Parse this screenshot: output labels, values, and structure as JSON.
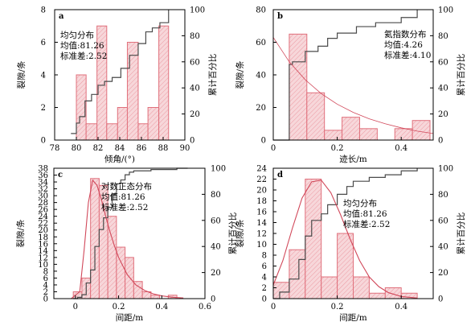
{
  "chart_data": [
    {
      "panel": "a",
      "type": "bar",
      "xlabel": "倾角/(°)",
      "ylabel": "裂隙/条",
      "y2label": "累计百分比",
      "xlim": [
        78,
        90
      ],
      "xticks": [
        78,
        80,
        82,
        84,
        86,
        88,
        90
      ],
      "ylim": [
        0,
        8
      ],
      "yticks": [
        0,
        2,
        4,
        6,
        8
      ],
      "y2lim": [
        0,
        100
      ],
      "y2ticks": [
        0,
        20,
        40,
        60,
        80,
        100
      ],
      "annotation": [
        "均匀分布",
        "均值:81.26",
        "标准差:2.52"
      ],
      "bins": [
        {
          "x0": 80.0,
          "x1": 80.9,
          "count": 4
        },
        {
          "x0": 80.9,
          "x1": 81.9,
          "count": 1
        },
        {
          "x0": 81.9,
          "x1": 82.8,
          "count": 7
        },
        {
          "x0": 82.8,
          "x1": 83.8,
          "count": 1
        },
        {
          "x0": 83.8,
          "x1": 84.7,
          "count": 2
        },
        {
          "x0": 84.7,
          "x1": 85.7,
          "count": 6
        },
        {
          "x0": 85.7,
          "x1": 86.6,
          "count": 1
        },
        {
          "x0": 86.6,
          "x1": 87.6,
          "count": 2
        },
        {
          "x0": 87.6,
          "x1": 88.5,
          "count": 7
        }
      ],
      "cumulative": {
        "x": [
          79.5,
          80.0,
          80.3,
          80.8,
          81.4,
          82.0,
          82.6,
          83.3,
          84.1,
          84.9,
          85.7,
          86.4,
          87.0,
          87.7,
          88.5
        ],
        "y": [
          5,
          13,
          18,
          30,
          35,
          42,
          45,
          48,
          55,
          65,
          74,
          83,
          86,
          90,
          100
        ]
      },
      "fit": null
    },
    {
      "panel": "b",
      "type": "bar",
      "xlabel": "迹长/m",
      "ylabel": "裂隙/条",
      "y2label": "累计百分比",
      "xlim": [
        0,
        0.5
      ],
      "xticks": [
        0,
        0.2,
        0.4
      ],
      "ylim": [
        0,
        80
      ],
      "yticks": [
        0,
        20,
        40,
        60,
        80
      ],
      "y2lim": [
        0,
        100
      ],
      "y2ticks": [
        0,
        20,
        40,
        60,
        80,
        100
      ],
      "annotation": [
        "氦指数分布",
        "均值:4.26",
        "标准差:4.10"
      ],
      "bins": [
        {
          "x0": 0.05,
          "x1": 0.105,
          "count": 65
        },
        {
          "x0": 0.105,
          "x1": 0.16,
          "count": 29
        },
        {
          "x0": 0.16,
          "x1": 0.215,
          "count": 6
        },
        {
          "x0": 0.215,
          "x1": 0.27,
          "count": 14
        },
        {
          "x0": 0.27,
          "x1": 0.325,
          "count": 7
        },
        {
          "x0": 0.38,
          "x1": 0.435,
          "count": 7
        },
        {
          "x0": 0.435,
          "x1": 0.49,
          "count": 12
        }
      ],
      "cumulative": {
        "x": [
          0.0,
          0.05,
          0.06,
          0.1,
          0.14,
          0.17,
          0.2,
          0.26,
          0.32,
          0.4,
          0.45
        ],
        "y": [
          0,
          58,
          60,
          68,
          72,
          78,
          82,
          87,
          90,
          94,
          100
        ]
      },
      "fit": {
        "kind": "exponential",
        "x": [
          0.0,
          0.05,
          0.1,
          0.15,
          0.2,
          0.25,
          0.3,
          0.35,
          0.4,
          0.45,
          0.5
        ],
        "y": [
          63,
          48,
          37,
          28.5,
          22,
          17,
          13,
          10,
          7.5,
          5.5,
          4
        ]
      }
    },
    {
      "panel": "c",
      "type": "bar",
      "xlabel": "间距/m",
      "ylabel": "裂隙/条",
      "y2label": "累计百分比",
      "xlim": [
        -0.1,
        0.6
      ],
      "xticks": [
        0,
        0.2,
        0.4,
        0.6
      ],
      "ylim": [
        0,
        38
      ],
      "yticks": [
        0,
        2,
        4,
        6,
        8,
        10,
        12,
        14,
        16,
        18,
        20,
        22,
        24,
        26,
        28,
        30,
        32,
        34,
        36,
        38
      ],
      "y2lim": [
        0,
        100
      ],
      "y2ticks": [
        0,
        20,
        40,
        60,
        80,
        100
      ],
      "annotation": [
        "对数正态分布",
        "均值:81.26",
        "标准差:2.52"
      ],
      "bins": [
        {
          "x0": -0.01,
          "x1": 0.03,
          "count": 2
        },
        {
          "x0": 0.03,
          "x1": 0.07,
          "count": 6
        },
        {
          "x0": 0.07,
          "x1": 0.11,
          "count": 35
        },
        {
          "x0": 0.11,
          "x1": 0.15,
          "count": 33
        },
        {
          "x0": 0.15,
          "x1": 0.19,
          "count": 24
        },
        {
          "x0": 0.19,
          "x1": 0.23,
          "count": 15
        },
        {
          "x0": 0.23,
          "x1": 0.27,
          "count": 12
        },
        {
          "x0": 0.27,
          "x1": 0.31,
          "count": 5
        },
        {
          "x0": 0.31,
          "x1": 0.35,
          "count": 2
        },
        {
          "x0": 0.35,
          "x1": 0.39,
          "count": 1
        },
        {
          "x0": 0.43,
          "x1": 0.47,
          "count": 1
        }
      ],
      "cumulative": {
        "x": [
          -0.01,
          0.01,
          0.03,
          0.05,
          0.07,
          0.09,
          0.11,
          0.13,
          0.15,
          0.17,
          0.19,
          0.21,
          0.23,
          0.25,
          0.27,
          0.31,
          0.35,
          0.39,
          0.43,
          0.47,
          0.52
        ],
        "y": [
          0,
          1,
          3,
          12,
          22,
          40,
          53,
          62,
          70,
          80,
          88,
          91,
          95,
          97,
          98,
          98,
          99,
          99,
          99,
          100,
          100
        ]
      },
      "fit": {
        "kind": "lognormal",
        "x": [
          -0.02,
          0.02,
          0.04,
          0.06,
          0.08,
          0.1,
          0.12,
          0.14,
          0.16,
          0.18,
          0.2,
          0.24,
          0.28,
          0.32,
          0.36,
          0.4,
          0.45,
          0.5
        ],
        "y": [
          0,
          2,
          14,
          28,
          34.5,
          33,
          29,
          24,
          19.5,
          15.5,
          12,
          7,
          4,
          2.4,
          1.4,
          0.8,
          0.4,
          0.2
        ]
      }
    },
    {
      "panel": "d",
      "type": "bar",
      "xlabel": "间距/m",
      "ylabel": "裂隙/条",
      "y2label": "累计百分比",
      "xlim": [
        0,
        0.5
      ],
      "xticks": [
        0,
        0.2,
        0.4
      ],
      "ylim": [
        0,
        24
      ],
      "yticks": [
        0,
        2,
        4,
        6,
        8,
        10,
        12,
        14,
        16,
        18,
        20,
        22,
        24
      ],
      "y2lim": [
        0,
        100
      ],
      "y2ticks": [
        0,
        20,
        40,
        60,
        80,
        100
      ],
      "annotation": [
        "均匀分布",
        "均值:81.26",
        "标准差:2.52"
      ],
      "bins": [
        {
          "x0": 0.0,
          "x1": 0.05,
          "count": 3
        },
        {
          "x0": 0.05,
          "x1": 0.1,
          "count": 9
        },
        {
          "x0": 0.1,
          "x1": 0.15,
          "count": 22
        },
        {
          "x0": 0.15,
          "x1": 0.2,
          "count": 4
        },
        {
          "x0": 0.2,
          "x1": 0.25,
          "count": 12
        },
        {
          "x0": 0.25,
          "x1": 0.3,
          "count": 4
        },
        {
          "x0": 0.3,
          "x1": 0.35,
          "count": 1
        },
        {
          "x0": 0.35,
          "x1": 0.4,
          "count": 2
        },
        {
          "x0": 0.4,
          "x1": 0.45,
          "count": 1
        }
      ],
      "cumulative": {
        "x": [
          0.0,
          0.02,
          0.05,
          0.08,
          0.1,
          0.12,
          0.15,
          0.17,
          0.2,
          0.23,
          0.25,
          0.3,
          0.35,
          0.4,
          0.45
        ],
        "y": [
          0,
          5,
          15,
          30,
          48,
          60,
          65,
          72,
          80,
          86,
          90,
          93,
          95,
          98,
          100
        ]
      },
      "fit": {
        "kind": "normal",
        "x": [
          0.0,
          0.03,
          0.06,
          0.09,
          0.12,
          0.15,
          0.18,
          0.21,
          0.24,
          0.27,
          0.3,
          0.33,
          0.36,
          0.4,
          0.45
        ],
        "y": [
          2.5,
          7,
          13,
          18.5,
          21.5,
          21.8,
          19.5,
          15.5,
          11,
          7,
          4,
          2.2,
          1.1,
          0.4,
          0.1
        ]
      }
    }
  ],
  "colors": {
    "bar_edge": "#e0707c",
    "bar_fill": "#f7d7da",
    "bar_hatch": "#ec9aa3",
    "cumulative_line": "#4a4a4a",
    "fit_line": "#d1485a",
    "axis": "#000000"
  }
}
